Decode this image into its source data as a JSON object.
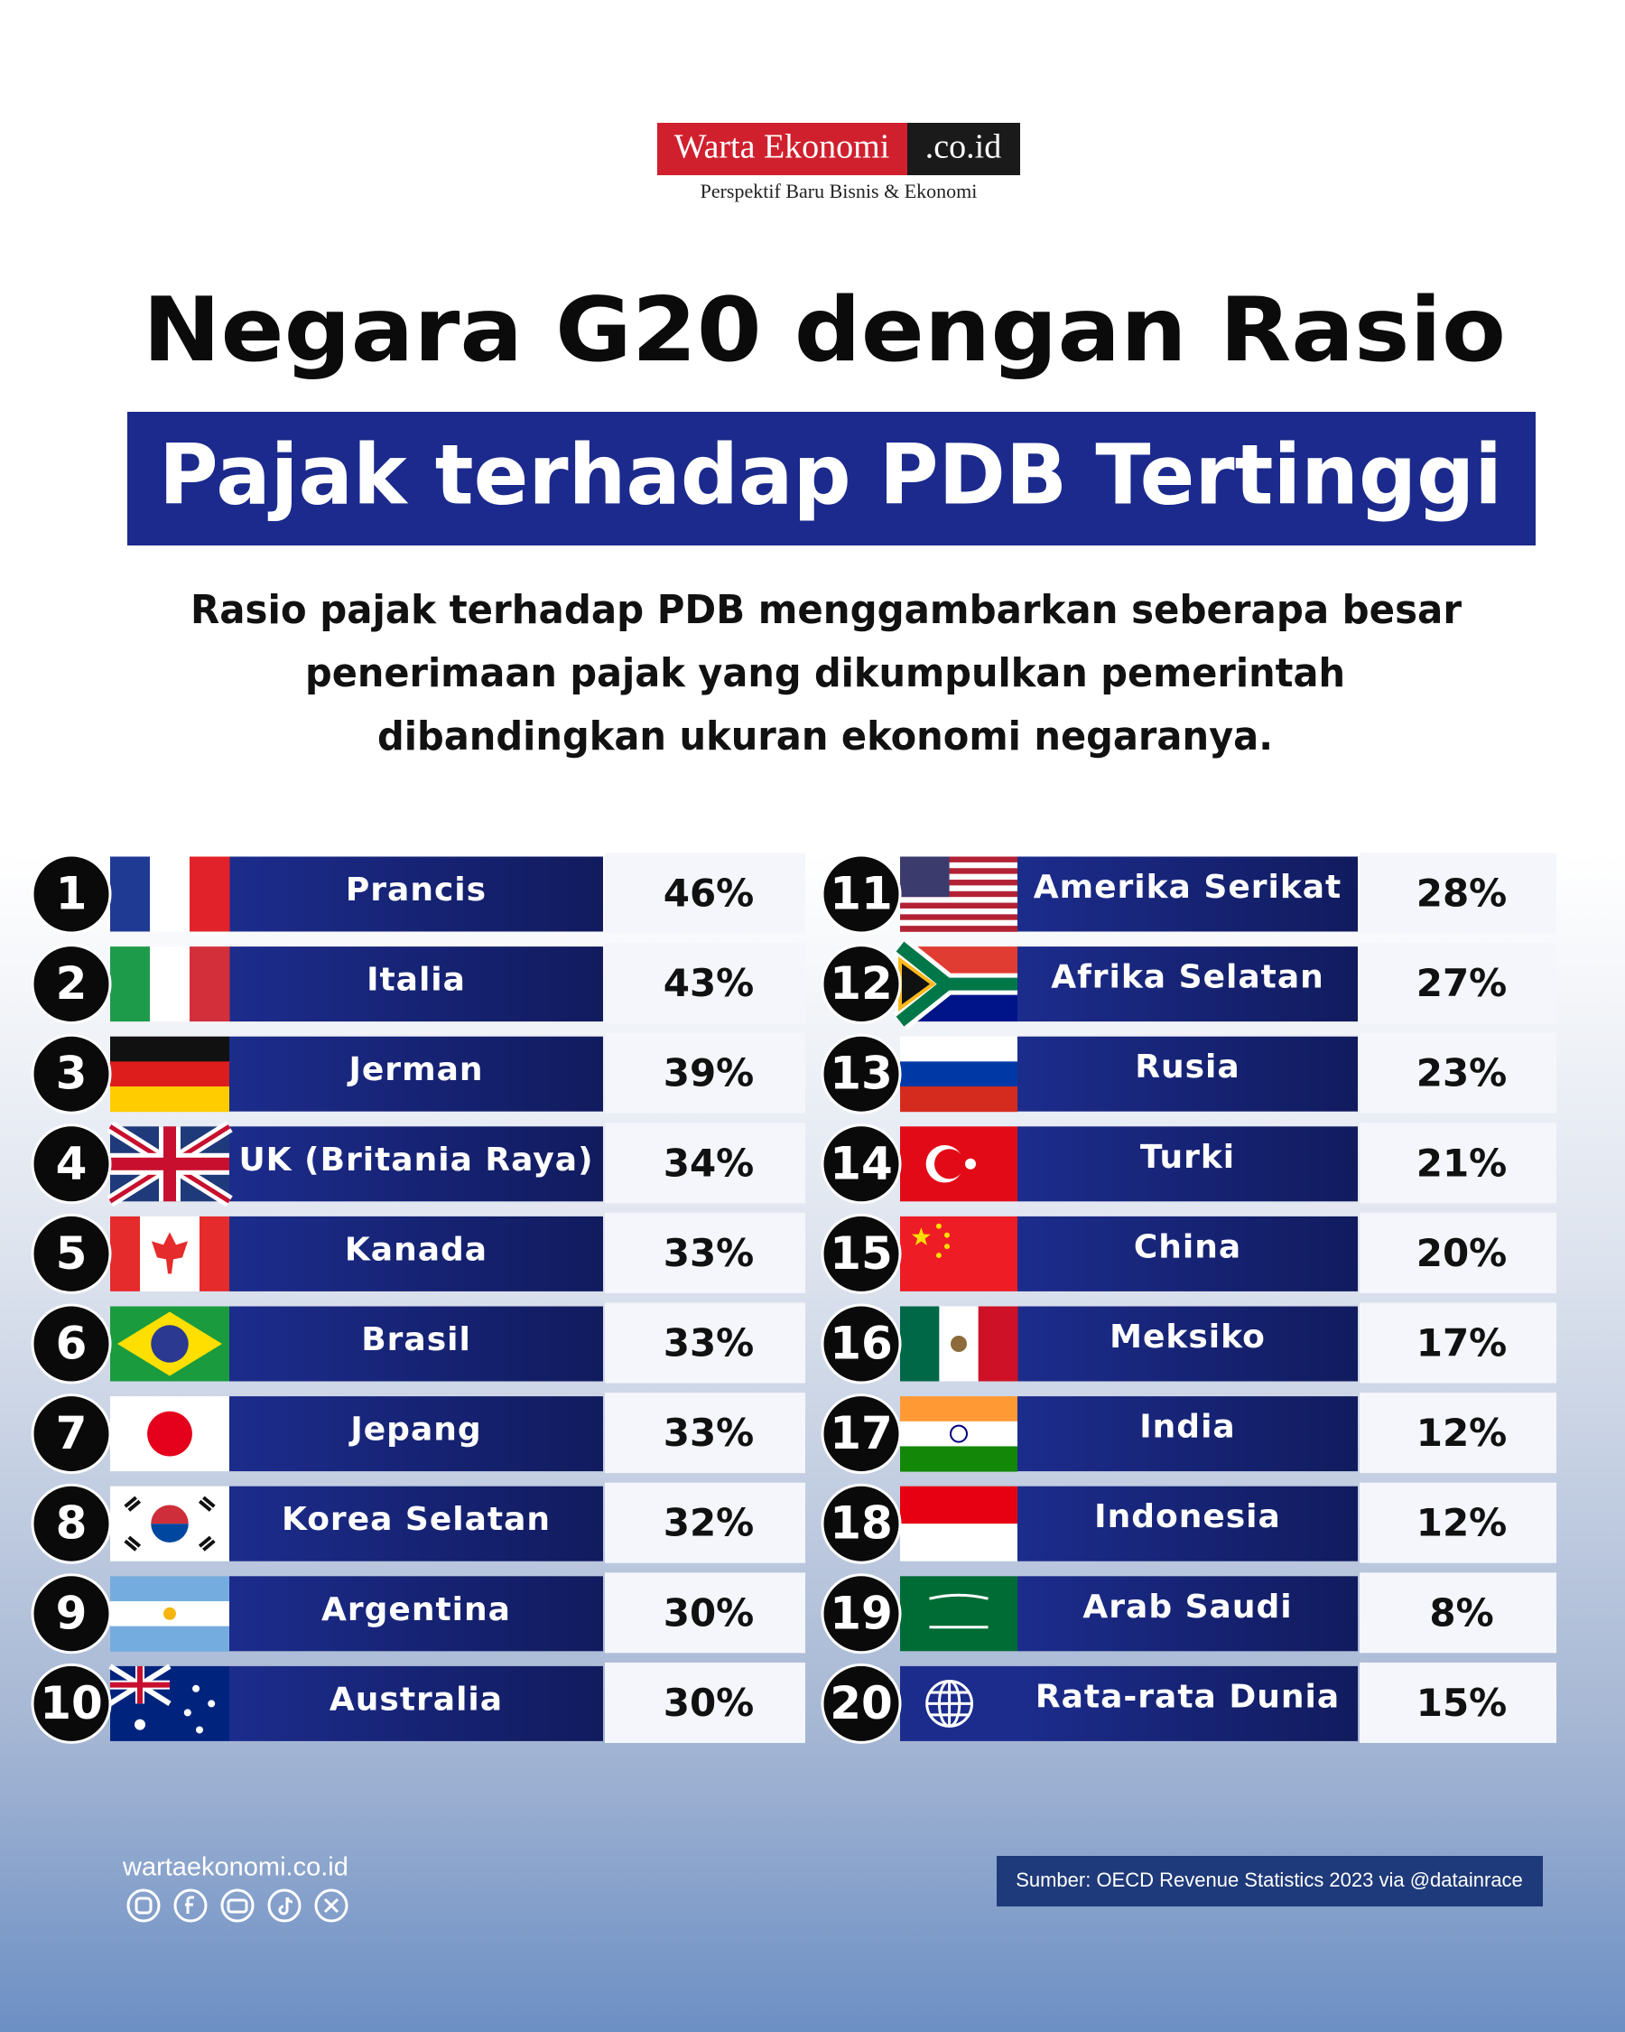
{
  "logo": {
    "name": "Warta Ekonomi",
    "suffix": ".co.id",
    "tagline": "Perspektif Baru Bisnis & Ekonomi"
  },
  "header": {
    "title": "Negara G20 dengan Rasio",
    "subtitle": "Pajak terhadap PDB Tertinggi",
    "description": [
      "Rasio pajak terhadap PDB menggambarkan seberapa besar",
      "penerimaan pajak yang dikumpulkan pemerintah",
      "dibandingkan ukuran ekonomi negaranya."
    ]
  },
  "table": {
    "rows": [
      {
        "rank": "1",
        "country": "Prancis",
        "value": "46%"
      },
      {
        "rank": "2",
        "country": "Italia",
        "value": "43%"
      },
      {
        "rank": "3",
        "country": "Jerman",
        "value": "39%"
      },
      {
        "rank": "4",
        "country": "UK (Britania Raya)",
        "value": "34%"
      },
      {
        "rank": "5",
        "country": "Kanada",
        "value": "33%"
      },
      {
        "rank": "6",
        "country": "Brasil",
        "value": "33%"
      },
      {
        "rank": "7",
        "country": "Jepang",
        "value": "33%"
      },
      {
        "rank": "8",
        "country": "Korea Selatan",
        "value": "32%"
      },
      {
        "rank": "9",
        "country": "Argentina",
        "value": "30%"
      },
      {
        "rank": "10",
        "country": "Australia",
        "value": "30%"
      },
      {
        "rank": "11",
        "country": "Amerika Serikat",
        "value": "28%"
      },
      {
        "rank": "12",
        "country": "Afrika Selatan",
        "value": "27%"
      },
      {
        "rank": "13",
        "country": "Rusia",
        "value": "23%"
      },
      {
        "rank": "14",
        "country": "Turki",
        "value": "21%"
      },
      {
        "rank": "15",
        "country": "China",
        "value": "20%"
      },
      {
        "rank": "16",
        "country": "Meksiko",
        "value": "17%"
      },
      {
        "rank": "17",
        "country": "India",
        "value": "12%"
      },
      {
        "rank": "18",
        "country": "Indonesia",
        "value": "12%"
      },
      {
        "rank": "19",
        "country": "Arab Saudi",
        "value": "8%"
      },
      {
        "rank": "20",
        "country": "Rata-rata Dunia",
        "value": "15%"
      }
    ]
  },
  "footer": {
    "website": "wartaekonomi.co.id",
    "source": "Sumber: OECD Revenue Statistics 2023 via @datainrace"
  }
}
